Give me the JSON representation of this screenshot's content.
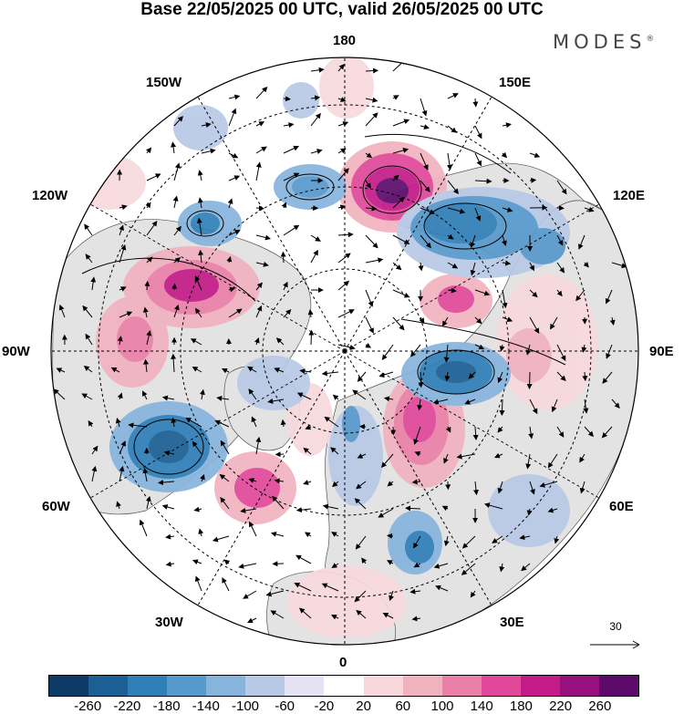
{
  "title": "Base 22/05/2025 00 UTC, valid 26/05/2025 00 UTC",
  "brand": "MODES",
  "brand_mark": "®",
  "longitude_labels": {
    "lon_180": "180",
    "lon_150e": "150E",
    "lon_120e": "120E",
    "lon_90e": "90E",
    "lon_60e": "60E",
    "lon_30e": "30E",
    "lon_0": "0",
    "lon_30w": "30W",
    "lon_60w": "60W",
    "lon_90w": "90W",
    "lon_120w": "120W",
    "lon_150w": "150W"
  },
  "reference_vector": {
    "label": "30",
    "value": 30
  },
  "colorbar": {
    "colors": [
      "#0d3a66",
      "#1b5f94",
      "#2f7fb8",
      "#5699cc",
      "#86b4dc",
      "#b8c9e6",
      "#e3e3f3",
      "#ffffff",
      "#f7d9dd",
      "#f1b2c0",
      "#ea80a8",
      "#e0489a",
      "#c31b88",
      "#96107e",
      "#5c0a6b"
    ],
    "tick_labels": [
      "-260",
      "-220",
      "-180",
      "-140",
      "-100",
      "-60",
      "-20",
      "20",
      "60",
      "100",
      "140",
      "180",
      "220",
      "260"
    ]
  },
  "map_colors": {
    "land": "#e6e6e6",
    "ocean": "#ffffff",
    "grid": "#000000"
  }
}
